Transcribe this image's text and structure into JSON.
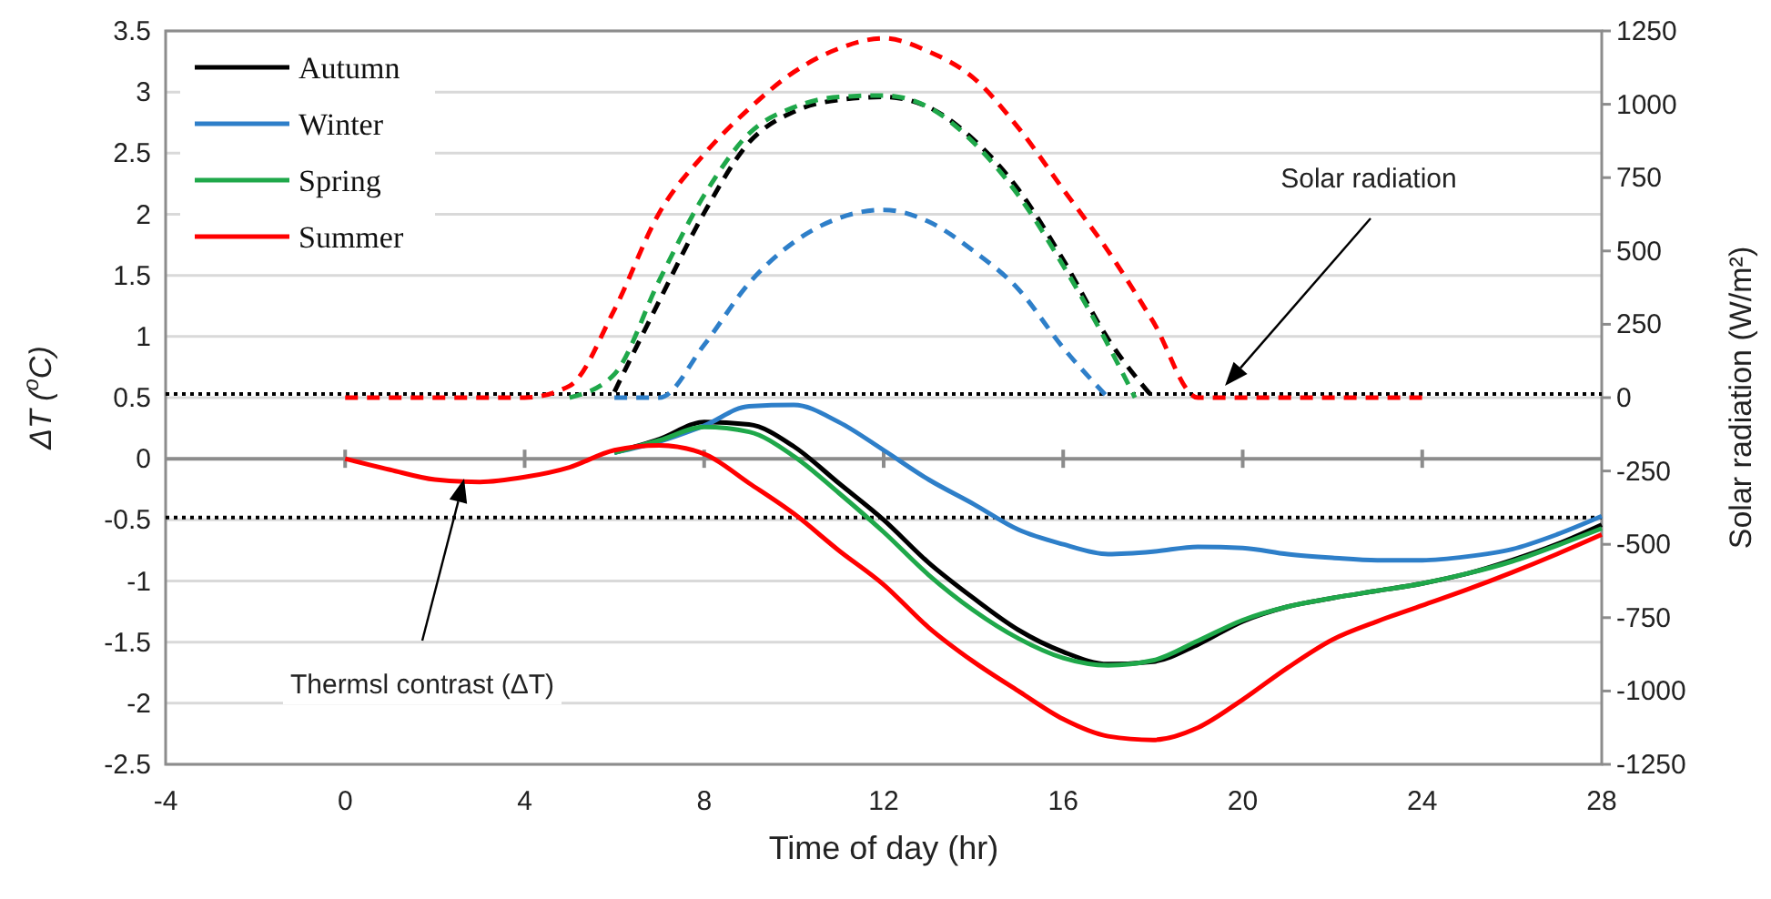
{
  "chart_data": {
    "type": "line",
    "xlabel": "Time of day (hr)",
    "ylabel": "ΔT ($^{o}$C)",
    "y2label": "Solar radiation (W/m²)",
    "xlim": [
      -4,
      28
    ],
    "xticks": [
      -4,
      0,
      4,
      8,
      12,
      16,
      20,
      24,
      28
    ],
    "ylim": [
      -2.5,
      3.5
    ],
    "yticks": [
      -2.5,
      -2,
      -1.5,
      -1,
      -0.5,
      0,
      0.5,
      1,
      1.5,
      2,
      2.5,
      3,
      3.5
    ],
    "y2lim": [
      -1250,
      1250
    ],
    "y2ticks": [
      -1250,
      -1000,
      -750,
      -500,
      -250,
      0,
      250,
      500,
      750,
      1000,
      1250
    ],
    "grid": "y",
    "legend": "top left",
    "ref_lines": [
      {
        "axis": "y",
        "value": 0.53,
        "color": "#000000",
        "line_style": "dotted"
      },
      {
        "axis": "y",
        "value": -0.48,
        "color": "#000000",
        "line_style": "dotted"
      }
    ],
    "annotations": [
      "Solar radiation",
      "Thermsl contrast (ΔT)"
    ],
    "series": [
      {
        "name": "Autumn",
        "color": "#000000",
        "line_style": "solid",
        "x": [
          6,
          7,
          8,
          9,
          10,
          11,
          12,
          13,
          14,
          15,
          16,
          17,
          18,
          19,
          20,
          21,
          22,
          23,
          24,
          25,
          26,
          27,
          28
        ],
        "values": [
          0.05,
          0.16,
          0.3,
          0.28,
          0.1,
          -0.2,
          -0.5,
          -0.85,
          -1.14,
          -1.4,
          -1.58,
          -1.68,
          -1.66,
          -1.52,
          -1.33,
          -1.21,
          -1.14,
          -1.08,
          -1.02,
          -0.94,
          -0.83,
          -0.7,
          -0.54
        ]
      },
      {
        "name": "Winter",
        "color": "#2e7fc9",
        "line_style": "solid",
        "x": [
          6,
          7,
          8,
          9,
          10,
          11,
          12,
          13,
          14,
          15,
          16,
          17,
          18,
          19,
          20,
          21,
          22,
          23,
          24,
          25,
          26,
          27,
          28
        ],
        "values": [
          0.05,
          0.14,
          0.27,
          0.43,
          0.44,
          0.3,
          0.07,
          -0.17,
          -0.37,
          -0.58,
          -0.7,
          -0.78,
          -0.76,
          -0.72,
          -0.73,
          -0.78,
          -0.81,
          -0.83,
          -0.83,
          -0.8,
          -0.74,
          -0.62,
          -0.47
        ]
      },
      {
        "name": "Spring",
        "color": "#1fa84a",
        "line_style": "solid",
        "x": [
          6,
          7,
          8,
          9,
          10,
          11,
          12,
          13,
          14,
          15,
          16,
          17,
          18,
          19,
          20,
          21,
          22,
          23,
          24,
          25,
          26,
          27,
          28
        ],
        "values": [
          0.05,
          0.15,
          0.26,
          0.22,
          0.02,
          -0.28,
          -0.6,
          -0.95,
          -1.24,
          -1.47,
          -1.63,
          -1.69,
          -1.65,
          -1.49,
          -1.32,
          -1.21,
          -1.14,
          -1.08,
          -1.02,
          -0.94,
          -0.84,
          -0.71,
          -0.57
        ]
      },
      {
        "name": "Summer",
        "color": "#ff0000",
        "line_style": "solid",
        "x": [
          0,
          1,
          2,
          3,
          4,
          5,
          6,
          7,
          8,
          9,
          10,
          11,
          12,
          13,
          14,
          15,
          16,
          17,
          18,
          19,
          20,
          21,
          22,
          23,
          24,
          25,
          26,
          27,
          28
        ],
        "values": [
          0,
          -0.09,
          -0.17,
          -0.19,
          -0.15,
          -0.07,
          0.07,
          0.11,
          0.04,
          -0.2,
          -0.45,
          -0.75,
          -1.03,
          -1.38,
          -1.66,
          -1.9,
          -2.13,
          -2.27,
          -2.3,
          -2.2,
          -1.97,
          -1.71,
          -1.48,
          -1.33,
          -1.2,
          -1.07,
          -0.93,
          -0.78,
          -0.62
        ]
      },
      {
        "color": "#000000",
        "line_style": "dashed",
        "axis": "y2",
        "x": [
          6,
          7,
          8,
          9,
          10,
          11,
          12,
          13,
          14,
          15,
          16,
          17,
          18
        ],
        "values": [
          20,
          330,
          630,
          870,
          975,
          1015,
          1025,
          990,
          880,
          710,
          470,
          200,
          0
        ]
      },
      {
        "color": "#2e7fc9",
        "line_style": "dashed",
        "axis": "y2",
        "x": [
          6,
          7,
          8,
          9,
          10,
          11,
          12,
          13,
          14,
          15,
          16,
          17
        ],
        "values": [
          0,
          0,
          180,
          390,
          530,
          612,
          640,
          600,
          500,
          370,
          170,
          0
        ]
      },
      {
        "color": "#1fa84a",
        "line_style": "dashed",
        "axis": "y2",
        "x": [
          5,
          6,
          7,
          8,
          9,
          10,
          11,
          12,
          13,
          14,
          15,
          16,
          17,
          17.6
        ],
        "values": [
          0,
          80,
          400,
          690,
          900,
          990,
          1025,
          1030,
          990,
          870,
          690,
          450,
          180,
          0
        ]
      },
      {
        "color": "#ff0000",
        "line_style": "dashed",
        "axis": "y2",
        "x": [
          0,
          1,
          2,
          3,
          4,
          5,
          6,
          7,
          8,
          9,
          10,
          11,
          12,
          13,
          14,
          15,
          16,
          17,
          18,
          19,
          20,
          21,
          22,
          23,
          24
        ],
        "values": [
          0,
          0,
          0,
          0,
          0,
          40,
          300,
          630,
          830,
          985,
          1110,
          1190,
          1225,
          1180,
          1090,
          920,
          710,
          500,
          260,
          0,
          0,
          0,
          0,
          0,
          0
        ]
      }
    ]
  }
}
